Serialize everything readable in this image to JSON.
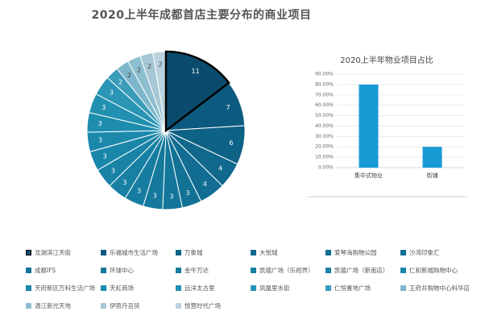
{
  "title": "2020上半年成都首店主要分布的商业项目",
  "chart_data": [
    {
      "type": "pie",
      "labels": [
        "龙湖滨江天街",
        "乐福城市生活广场",
        "万象城",
        "大悦城",
        "爱琴海购物公园",
        "沙湾印象汇",
        "成都IFS",
        "环球中心",
        "金牛万达",
        "凯德广场（乐视界）",
        "凯德广场（新南店）",
        "仁和新城购物中心",
        "天府新区万科生活广场",
        "天虹商场",
        "远洋太古里",
        "凤凰里水街",
        "仁恒置地广场",
        "王府井购物中心科华店",
        "温江新光天地",
        "伊势丹百货",
        "悦营时代广场"
      ],
      "values": [
        11,
        7,
        6,
        4,
        4,
        3,
        3,
        3,
        3,
        3,
        3,
        3,
        3,
        3,
        3,
        3,
        2,
        2,
        2,
        2,
        2
      ],
      "highlight": 0,
      "colors": [
        "#0b4c6e",
        "#0d5a80",
        "#0e6286",
        "#10688d",
        "#116d92",
        "#127296",
        "#13769a",
        "#15799d",
        "#167da0",
        "#1780a3",
        "#1983a6",
        "#1a86a9",
        "#1c89ab",
        "#1e8cad",
        "#2290b0",
        "#2a95b4",
        "#3a9cb9",
        "#7fb6cb",
        "#8ebfd0",
        "#a6c8d5",
        "#b9d2dd"
      ]
    },
    {
      "type": "bar",
      "title": "2020上半年物业项目占比",
      "categories": [
        "集中式物业",
        "街铺"
      ],
      "values": [
        0.8,
        0.2
      ],
      "ylim": [
        0,
        0.9
      ],
      "yticks": [
        0,
        0.1,
        0.2,
        0.3,
        0.4,
        0.5,
        0.6,
        0.7,
        0.8,
        0.9
      ],
      "ytick_labels": [
        "0.00%",
        "10.00%",
        "20.00%",
        "30.00%",
        "40.00%",
        "50.00%",
        "60.00%",
        "70.00%",
        "80.00%",
        "90.00%"
      ],
      "grid": true,
      "color": "#169ad4"
    }
  ]
}
